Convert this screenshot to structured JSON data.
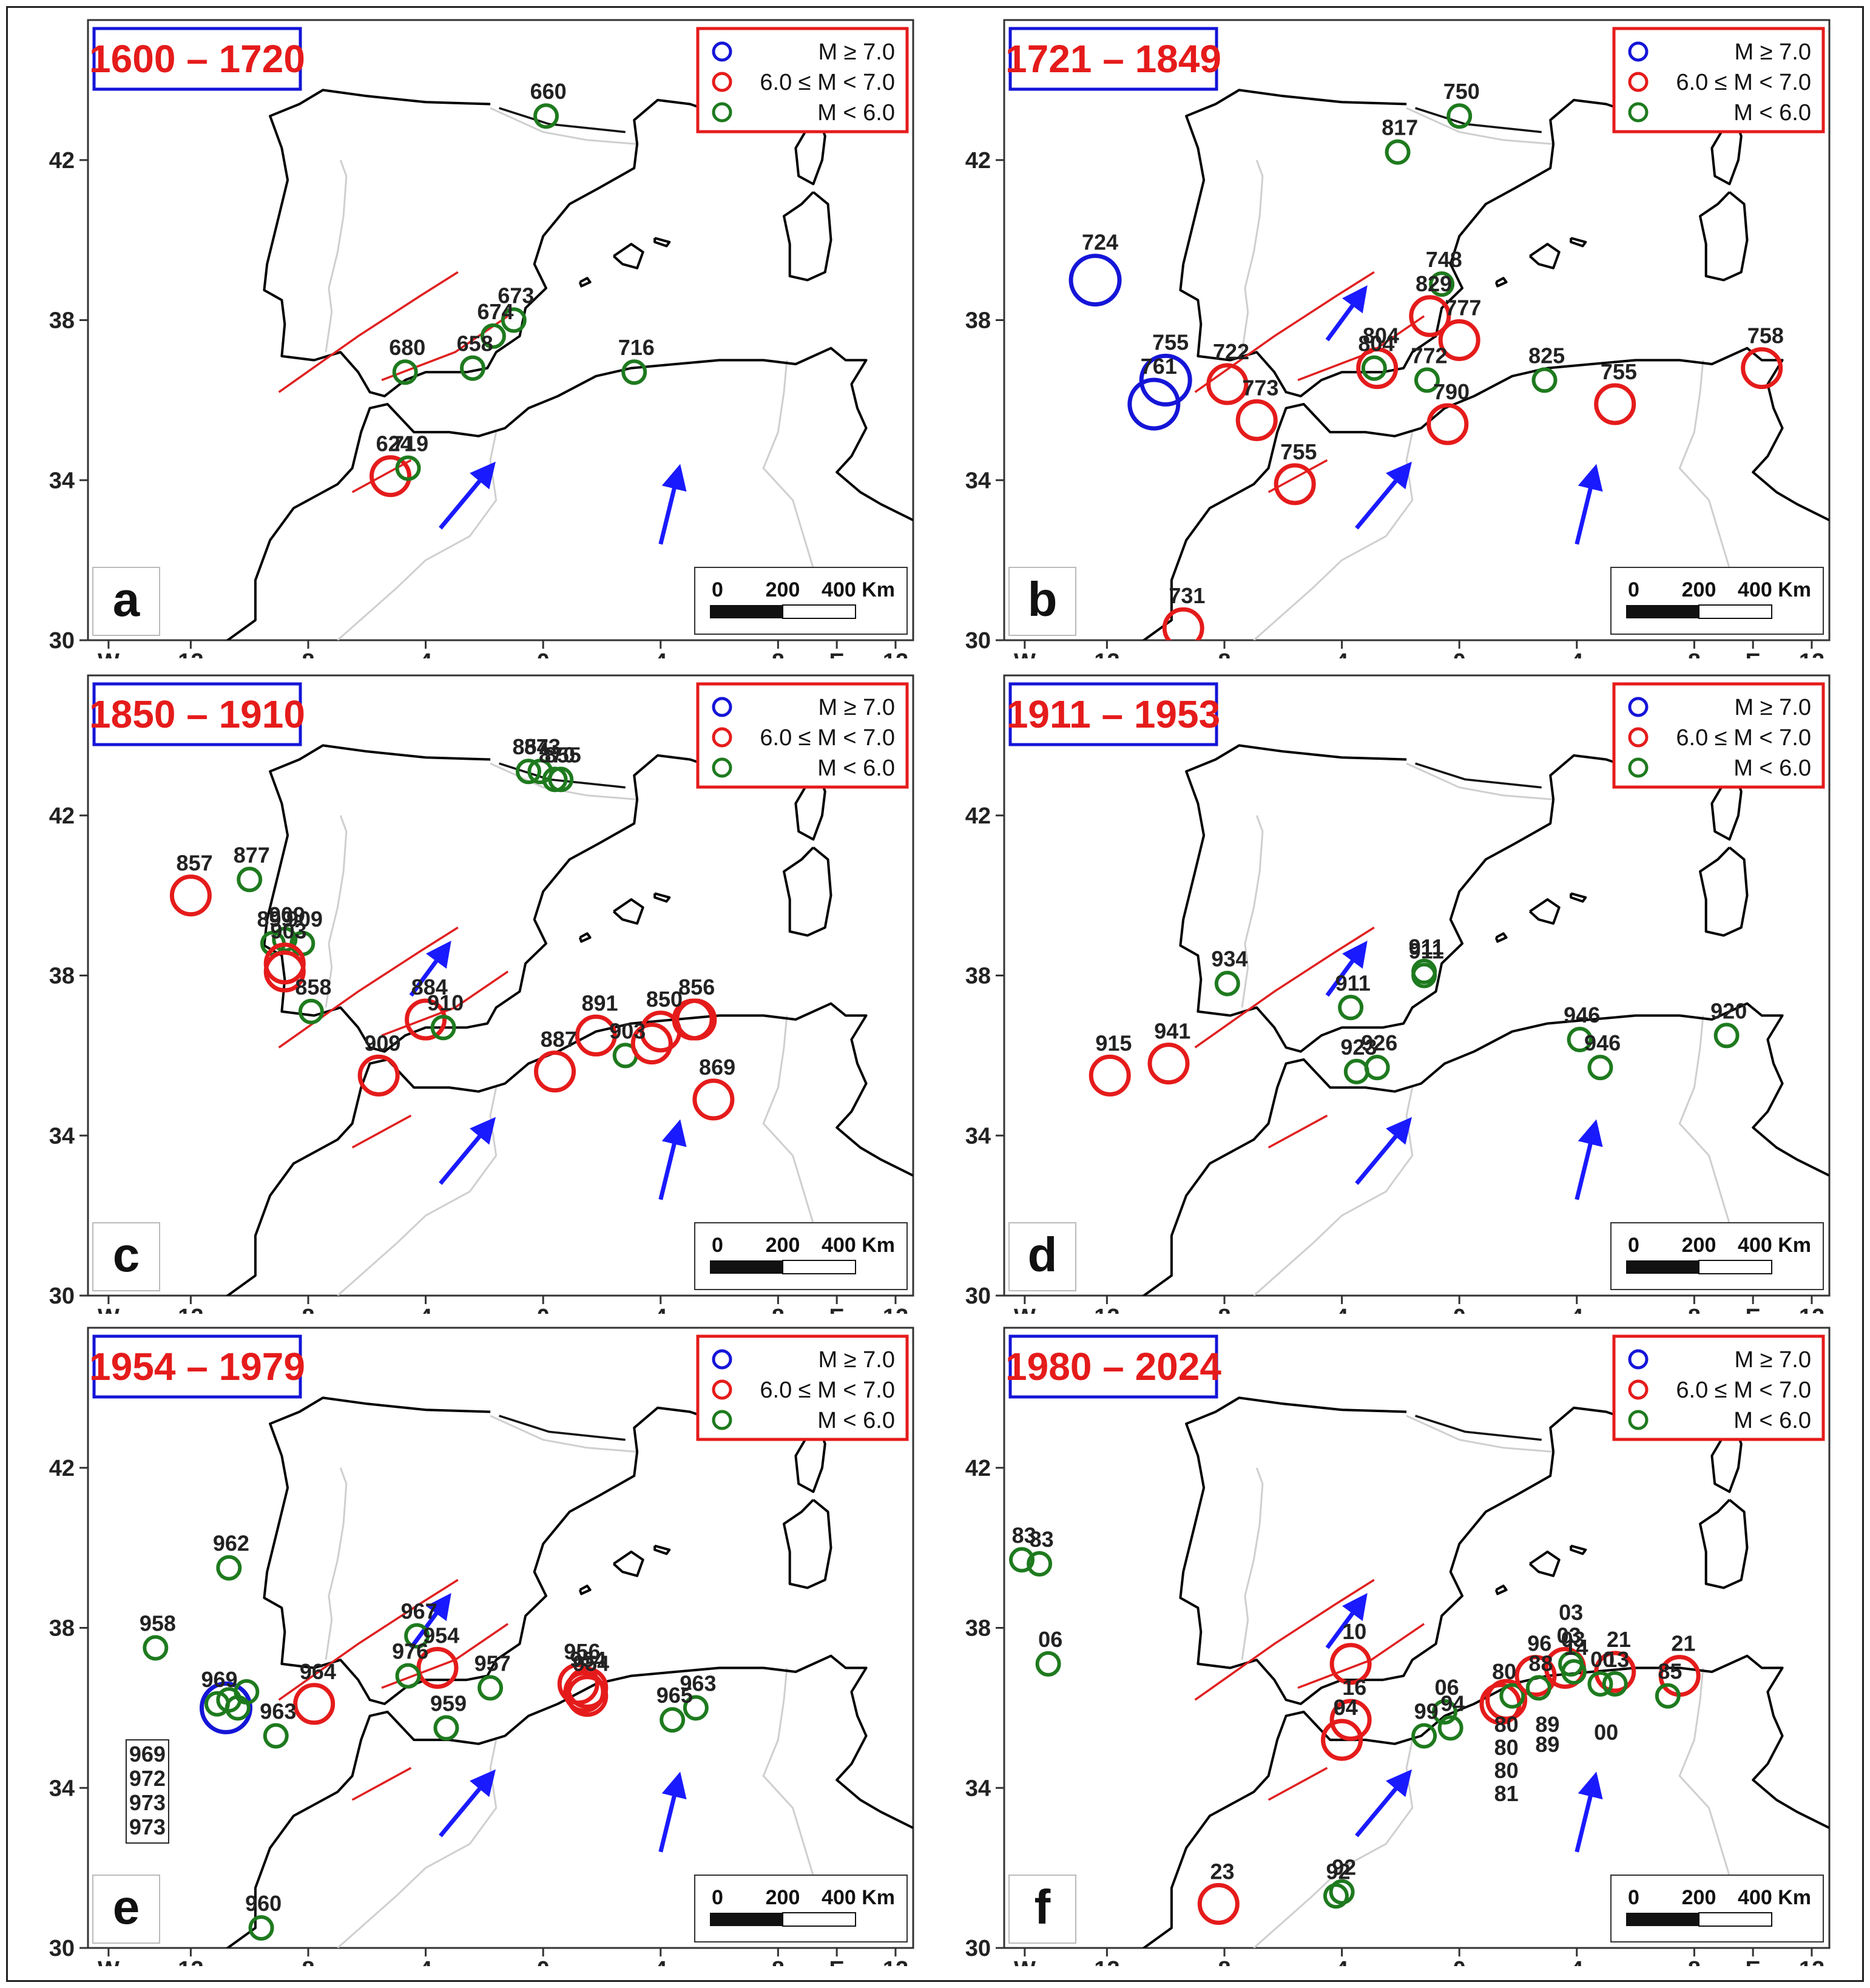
{
  "colors": {
    "blue_class": "#1515d8",
    "red_class": "#e51b1b",
    "green_class": "#1e7a1e",
    "title_text": "#e51b1b",
    "title_box": "#1515d8",
    "legend_box": "#e51b1b",
    "arrow": "#1a1aff"
  },
  "legend": {
    "large": "M ≥ 7.0",
    "medium": "6.0 ≤ M < 7.0",
    "small": "M < 6.0"
  },
  "scalebar": {
    "zero": "0",
    "mid": "200",
    "end": "400 Km"
  },
  "axes": {
    "y_ticks": [
      "42",
      "38",
      "34",
      "30"
    ],
    "x_ticks": [
      "W",
      "12",
      "8",
      "4",
      "0",
      "4",
      "8",
      "E",
      "12"
    ]
  },
  "panels": [
    {
      "letter": "a",
      "period": "1600 – 1720",
      "events": [
        {
          "lon": 0.1,
          "lat": 43.1,
          "class": "small",
          "label": "660"
        },
        {
          "lon": -4.7,
          "lat": 36.7,
          "class": "small",
          "label": "680"
        },
        {
          "lon": -2.4,
          "lat": 36.8,
          "class": "small",
          "label": "658"
        },
        {
          "lon": -1.7,
          "lat": 37.6,
          "class": "small",
          "label": "674"
        },
        {
          "lon": -1.0,
          "lat": 38.0,
          "class": "small",
          "label": "673"
        },
        {
          "lon": 3.1,
          "lat": 36.7,
          "class": "small",
          "label": "716"
        },
        {
          "lon": -5.2,
          "lat": 34.1,
          "class": "medium",
          "label": "624"
        },
        {
          "lon": -4.6,
          "lat": 34.3,
          "class": "small",
          "label": "719"
        }
      ]
    },
    {
      "letter": "b",
      "period": "1721 – 1849",
      "events": [
        {
          "lon": 0.0,
          "lat": 43.1,
          "class": "small",
          "label": "750"
        },
        {
          "lon": -2.1,
          "lat": 42.2,
          "class": "small",
          "label": "817"
        },
        {
          "lon": -12.4,
          "lat": 39.0,
          "class": "large",
          "label": "724"
        },
        {
          "lon": -0.6,
          "lat": 38.9,
          "class": "small",
          "label": "748"
        },
        {
          "lon": -1.0,
          "lat": 38.1,
          "class": "medium",
          "label": "829"
        },
        {
          "lon": 0.0,
          "lat": 37.5,
          "class": "medium",
          "label": "777"
        },
        {
          "lon": -10.0,
          "lat": 36.5,
          "class": "large",
          "label": "755"
        },
        {
          "lon": -10.4,
          "lat": 35.9,
          "class": "large",
          "label": "761"
        },
        {
          "lon": -7.9,
          "lat": 36.4,
          "class": "medium",
          "label": "722"
        },
        {
          "lon": -6.9,
          "lat": 35.5,
          "class": "medium",
          "label": "773"
        },
        {
          "lon": -2.8,
          "lat": 36.8,
          "class": "medium",
          "label": "804"
        },
        {
          "lon": -2.9,
          "lat": 36.8,
          "class": "small",
          "label": "804"
        },
        {
          "lon": -1.1,
          "lat": 36.5,
          "class": "small",
          "label": "772"
        },
        {
          "lon": -0.4,
          "lat": 35.4,
          "class": "medium",
          "label": "790"
        },
        {
          "lon": 2.9,
          "lat": 36.5,
          "class": "small",
          "label": "825"
        },
        {
          "lon": 5.3,
          "lat": 35.9,
          "class": "medium",
          "label": "755"
        },
        {
          "lon": 10.3,
          "lat": 36.8,
          "class": "medium",
          "label": "758"
        },
        {
          "lon": -5.6,
          "lat": 33.9,
          "class": "medium",
          "label": "755"
        },
        {
          "lon": -9.4,
          "lat": 30.3,
          "class": "medium",
          "label": "731"
        }
      ]
    },
    {
      "letter": "c",
      "period": "1850 – 1910",
      "events": [
        {
          "lon": -0.1,
          "lat": 43.1,
          "class": "small",
          "label": "873"
        },
        {
          "lon": -0.5,
          "lat": 43.1,
          "class": "small",
          "label": "854"
        },
        {
          "lon": 0.6,
          "lat": 42.9,
          "class": "small",
          "label": "855"
        },
        {
          "lon": 0.4,
          "lat": 42.9,
          "class": "small",
          "label": "870"
        },
        {
          "lon": -12.0,
          "lat": 40.0,
          "class": "medium",
          "label": "857"
        },
        {
          "lon": -10.0,
          "lat": 40.4,
          "class": "small",
          "label": "877"
        },
        {
          "lon": -8.8,
          "lat": 38.9,
          "class": "small",
          "label": "909"
        },
        {
          "lon": -8.2,
          "lat": 38.8,
          "class": "small",
          "label": "909"
        },
        {
          "lon": -9.2,
          "lat": 38.8,
          "class": "small",
          "label": "899"
        },
        {
          "lon": -8.8,
          "lat": 38.3,
          "class": "medium",
          "label": "903"
        },
        {
          "lon": -8.8,
          "lat": 38.1,
          "class": "medium",
          "label": ""
        },
        {
          "lon": -7.9,
          "lat": 37.1,
          "class": "small",
          "label": "858"
        },
        {
          "lon": -5.6,
          "lat": 35.5,
          "class": "medium",
          "label": "909"
        },
        {
          "lon": -4.0,
          "lat": 36.9,
          "class": "medium",
          "label": "884"
        },
        {
          "lon": -3.4,
          "lat": 36.7,
          "class": "small",
          "label": "910"
        },
        {
          "lon": 0.4,
          "lat": 35.6,
          "class": "medium",
          "label": "887"
        },
        {
          "lon": 1.8,
          "lat": 36.5,
          "class": "medium",
          "label": "891"
        },
        {
          "lon": 2.8,
          "lat": 36.0,
          "class": "small",
          "label": "903"
        },
        {
          "lon": 4.0,
          "lat": 36.6,
          "class": "medium",
          "label": "850"
        },
        {
          "lon": 3.7,
          "lat": 36.3,
          "class": "medium",
          "label": ""
        },
        {
          "lon": 5.1,
          "lat": 36.9,
          "class": "medium",
          "label": "856"
        },
        {
          "lon": 5.2,
          "lat": 36.9,
          "class": "medium",
          "label": ""
        },
        {
          "lon": 5.8,
          "lat": 34.9,
          "class": "medium",
          "label": "869"
        }
      ]
    },
    {
      "letter": "d",
      "period": "1911 – 1953",
      "events": [
        {
          "lon": -7.9,
          "lat": 37.8,
          "class": "small",
          "label": "934"
        },
        {
          "lon": -11.9,
          "lat": 35.5,
          "class": "medium",
          "label": "915"
        },
        {
          "lon": -9.9,
          "lat": 35.8,
          "class": "medium",
          "label": "941"
        },
        {
          "lon": -3.7,
          "lat": 37.2,
          "class": "small",
          "label": "911"
        },
        {
          "lon": -1.2,
          "lat": 38.1,
          "class": "small",
          "label": "911"
        },
        {
          "lon": -1.2,
          "lat": 38.0,
          "class": "small",
          "label": "911"
        },
        {
          "lon": -3.5,
          "lat": 35.6,
          "class": "small",
          "label": "923"
        },
        {
          "lon": -2.8,
          "lat": 35.7,
          "class": "small",
          "label": "926"
        },
        {
          "lon": 4.1,
          "lat": 36.4,
          "class": "small",
          "label": "946"
        },
        {
          "lon": 4.8,
          "lat": 35.7,
          "class": "small",
          "label": "946"
        },
        {
          "lon": 9.1,
          "lat": 36.5,
          "class": "small",
          "label": "920"
        }
      ]
    },
    {
      "letter": "e",
      "period": "1954 – 1979",
      "events": [
        {
          "lon": -10.7,
          "lat": 39.5,
          "class": "small",
          "label": "962"
        },
        {
          "lon": -13.2,
          "lat": 37.5,
          "class": "small",
          "label": "958"
        },
        {
          "lon": -4.3,
          "lat": 37.8,
          "class": "small",
          "label": "967"
        },
        {
          "lon": -3.6,
          "lat": 37.0,
          "class": "medium",
          "label": "954"
        },
        {
          "lon": -4.6,
          "lat": 36.8,
          "class": "small",
          "label": "976"
        },
        {
          "lon": -1.8,
          "lat": 36.5,
          "class": "small",
          "label": "957"
        },
        {
          "lon": -3.3,
          "lat": 35.5,
          "class": "small",
          "label": "959"
        },
        {
          "lon": -10.8,
          "lat": 36.0,
          "class": "large",
          "label": ""
        },
        {
          "lon": -11.1,
          "lat": 36.1,
          "class": "small",
          "label": "969"
        },
        {
          "lon": -10.7,
          "lat": 36.2,
          "class": "small",
          "label": ""
        },
        {
          "lon": -10.4,
          "lat": 36.0,
          "class": "small",
          "label": ""
        },
        {
          "lon": -10.1,
          "lat": 36.4,
          "class": "small",
          "label": ""
        },
        {
          "lon": -9.1,
          "lat": 35.3,
          "class": "small",
          "label": "963"
        },
        {
          "lon": -7.8,
          "lat": 36.1,
          "class": "medium",
          "label": "964"
        },
        {
          "lon": 1.2,
          "lat": 36.6,
          "class": "medium",
          "label": "956"
        },
        {
          "lon": 1.4,
          "lat": 36.4,
          "class": "medium",
          "label": "954"
        },
        {
          "lon": 1.5,
          "lat": 36.3,
          "class": "medium",
          "label": "954"
        },
        {
          "lon": 1.5,
          "lat": 36.5,
          "class": "medium",
          "label": ""
        },
        {
          "lon": 4.4,
          "lat": 35.7,
          "class": "small",
          "label": "965"
        },
        {
          "lon": 5.2,
          "lat": 36.0,
          "class": "small",
          "label": "963"
        },
        {
          "lon": -9.6,
          "lat": 30.5,
          "class": "small",
          "label": "960"
        }
      ],
      "boxed_labels": [
        "969",
        "972",
        "973",
        "973"
      ]
    },
    {
      "letter": "f",
      "period": "1980 – 2024",
      "events": [
        {
          "lon": -14.9,
          "lat": 39.7,
          "class": "small",
          "label": "83"
        },
        {
          "lon": -14.3,
          "lat": 39.6,
          "class": "small",
          "label": "83"
        },
        {
          "lon": -14.0,
          "lat": 37.1,
          "class": "small",
          "label": "06"
        },
        {
          "lon": -3.7,
          "lat": 37.1,
          "class": "medium",
          "label": "10"
        },
        {
          "lon": -3.7,
          "lat": 35.7,
          "class": "medium",
          "label": "16"
        },
        {
          "lon": -4.0,
          "lat": 35.2,
          "class": "medium",
          "label": "04"
        },
        {
          "lon": -4.0,
          "lat": 35.2,
          "class": "medium",
          "label": "94"
        },
        {
          "lon": -0.5,
          "lat": 35.9,
          "class": "small",
          "label": "06"
        },
        {
          "lon": -1.2,
          "lat": 35.3,
          "class": "small",
          "label": "99"
        },
        {
          "lon": -0.3,
          "lat": 35.5,
          "class": "small",
          "label": "94"
        },
        {
          "lon": 1.4,
          "lat": 36.1,
          "class": "medium",
          "label": "80"
        },
        {
          "lon": 1.6,
          "lat": 36.2,
          "class": "medium",
          "label": ""
        },
        {
          "lon": 1.8,
          "lat": 36.3,
          "class": "small",
          "label": ""
        },
        {
          "lon": 2.6,
          "lat": 36.8,
          "class": "medium",
          "label": "96"
        },
        {
          "lon": 2.7,
          "lat": 36.5,
          "class": "small",
          "label": "88"
        },
        {
          "lon": 3.6,
          "lat": 37.0,
          "class": "medium",
          "label": "03"
        },
        {
          "lon": 3.8,
          "lat": 37.1,
          "class": "small",
          "label": "03"
        },
        {
          "lon": 3.9,
          "lat": 36.9,
          "class": "small",
          "label": "14"
        },
        {
          "lon": 5.3,
          "lat": 36.9,
          "class": "medium",
          "label": "21"
        },
        {
          "lon": 4.8,
          "lat": 36.6,
          "class": "small",
          "label": "00"
        },
        {
          "lon": 5.3,
          "lat": 36.6,
          "class": "small",
          "label": "13"
        },
        {
          "lon": 7.5,
          "lat": 36.8,
          "class": "medium",
          "label": "21"
        },
        {
          "lon": 7.1,
          "lat": 36.3,
          "class": "small",
          "label": "85"
        },
        {
          "lon": -8.2,
          "lat": 31.1,
          "class": "medium",
          "label": "23"
        },
        {
          "lon": -4.0,
          "lat": 31.4,
          "class": "small",
          "label": "92"
        },
        {
          "lon": -4.2,
          "lat": 31.3,
          "class": "small",
          "label": "92"
        }
      ],
      "stacked_labels": [
        "80",
        "80",
        "80",
        "81"
      ],
      "extra_labels": [
        "03",
        "89",
        "89",
        "00"
      ]
    }
  ]
}
